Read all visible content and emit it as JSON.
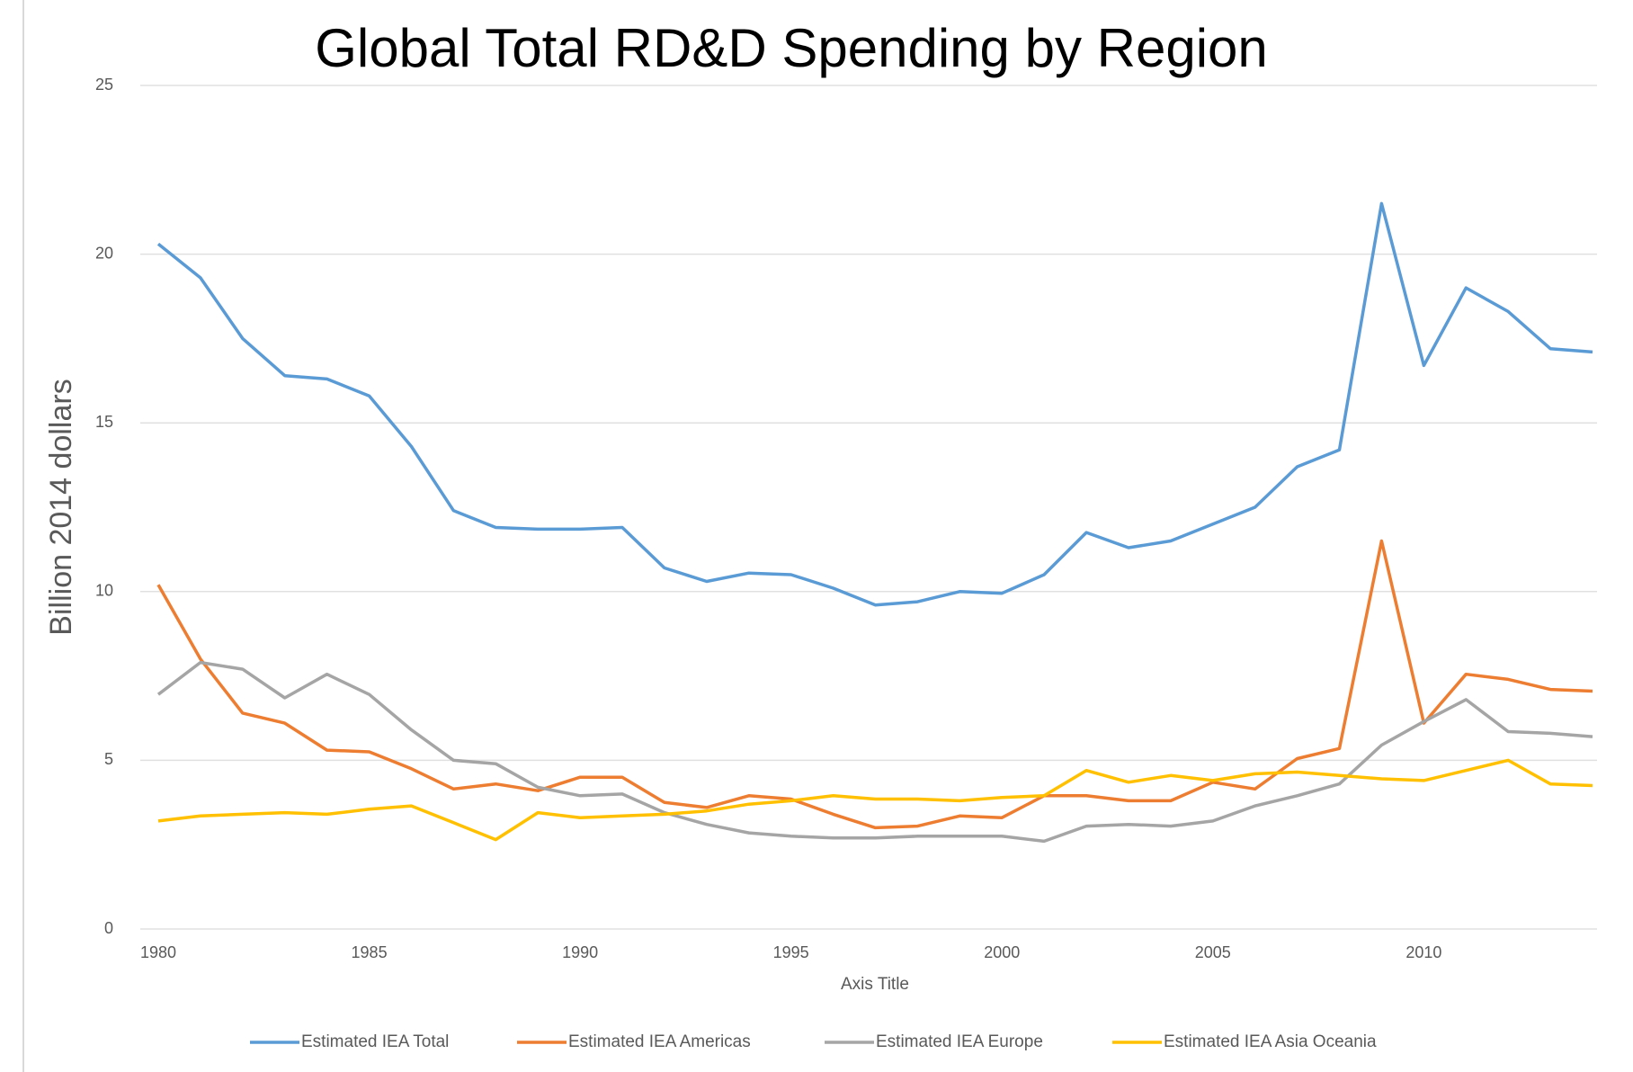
{
  "chart_data": {
    "type": "line",
    "title": "Global Total RD&D Spending by Region",
    "x_label": "Axis Title",
    "y_label": "Billion 2014 dollars",
    "x": [
      1980,
      1981,
      1982,
      1983,
      1984,
      1985,
      1986,
      1987,
      1988,
      1989,
      1990,
      1991,
      1992,
      1993,
      1994,
      1995,
      1996,
      1997,
      1998,
      1999,
      2000,
      2001,
      2002,
      2003,
      2004,
      2005,
      2006,
      2007,
      2008,
      2009,
      2010,
      2011,
      2012,
      2013,
      2014
    ],
    "series": [
      {
        "name": "Estimated IEA Total",
        "color": "#5b9bd5",
        "values": [
          20.3,
          19.3,
          17.5,
          16.4,
          16.3,
          15.8,
          14.3,
          12.4,
          11.9,
          11.85,
          11.85,
          11.9,
          10.7,
          10.3,
          10.55,
          10.5,
          10.1,
          9.6,
          9.7,
          10.0,
          9.95,
          10.5,
          11.75,
          11.3,
          11.5,
          12.0,
          12.5,
          13.7,
          14.2,
          21.5,
          16.7,
          19.0,
          18.3,
          17.2,
          17.1
        ]
      },
      {
        "name": "Estimated IEA Americas",
        "color": "#ed7d31",
        "values": [
          10.2,
          8.0,
          6.4,
          6.1,
          5.3,
          5.25,
          4.75,
          4.15,
          4.3,
          4.1,
          4.5,
          4.5,
          3.75,
          3.6,
          3.95,
          3.85,
          3.4,
          3.0,
          3.05,
          3.35,
          3.3,
          3.95,
          3.95,
          3.8,
          3.8,
          4.35,
          4.15,
          5.05,
          5.35,
          11.5,
          6.1,
          7.55,
          7.4,
          7.1,
          7.05
        ]
      },
      {
        "name": "Estimated IEA Europe",
        "color": "#a5a5a5",
        "values": [
          6.95,
          7.9,
          7.7,
          6.85,
          7.55,
          6.95,
          5.9,
          5.0,
          4.9,
          4.2,
          3.95,
          4.0,
          3.45,
          3.1,
          2.85,
          2.75,
          2.7,
          2.7,
          2.75,
          2.75,
          2.75,
          2.6,
          3.05,
          3.1,
          3.05,
          3.2,
          3.65,
          3.95,
          4.3,
          5.45,
          6.15,
          6.8,
          5.85,
          5.8,
          5.7
        ]
      },
      {
        "name": "Estimated IEA Asia Oceania",
        "color": "#ffc000",
        "values": [
          3.2,
          3.35,
          3.4,
          3.45,
          3.4,
          3.55,
          3.65,
          3.15,
          2.65,
          3.45,
          3.3,
          3.35,
          3.4,
          3.5,
          3.7,
          3.8,
          3.95,
          3.85,
          3.85,
          3.8,
          3.9,
          3.95,
          4.7,
          4.35,
          4.55,
          4.4,
          4.6,
          4.65,
          4.55,
          4.45,
          4.4,
          4.7,
          5.0,
          4.3,
          4.25
        ]
      }
    ],
    "xlim": [
      1980,
      2014
    ],
    "xticks": [
      1980,
      1985,
      1990,
      1995,
      2000,
      2005,
      2010
    ],
    "ylim": [
      0,
      25
    ],
    "yticks": [
      0,
      5,
      10,
      15,
      20,
      25
    ],
    "grid": true,
    "legend": "bottom"
  }
}
